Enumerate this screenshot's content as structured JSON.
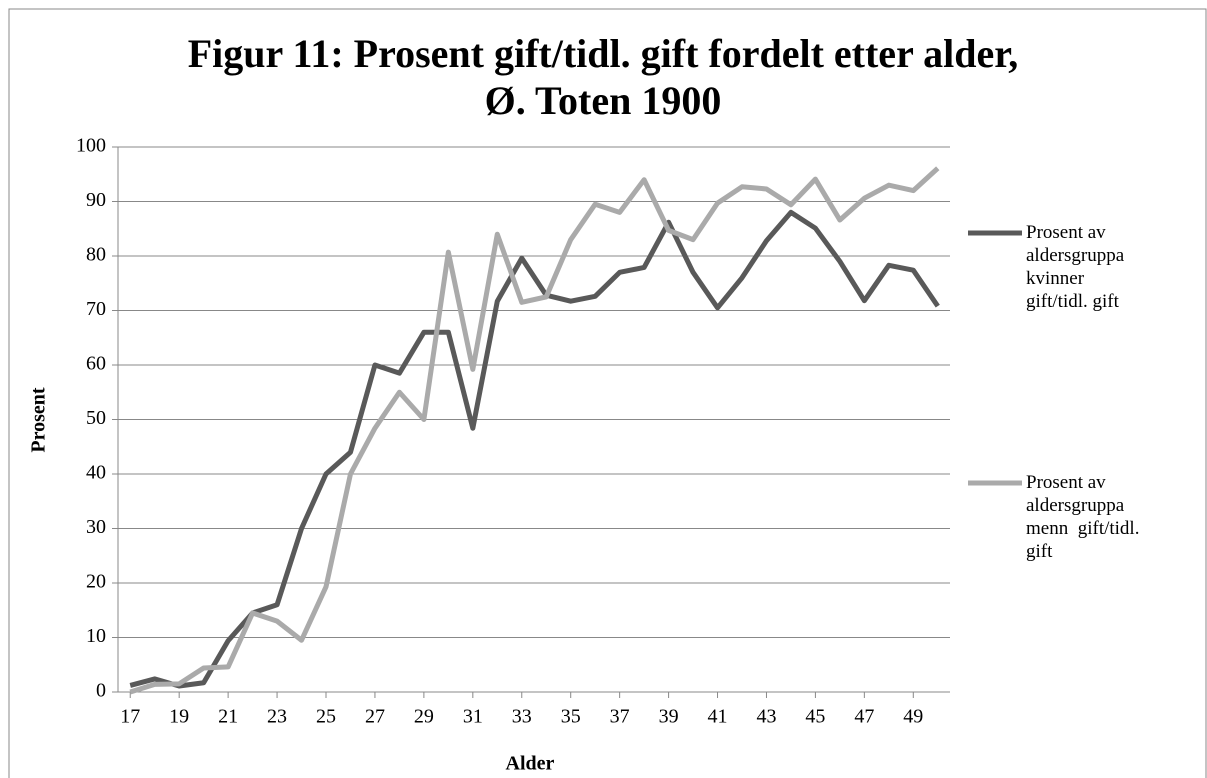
{
  "chart_data": {
    "type": "line",
    "title": [
      "Figur 11: Prosent gift/tidl. gift fordelt etter alder,",
      "Ø. Toten 1900"
    ],
    "x_label": "Alder",
    "y_label": "Prosent",
    "x": [
      17,
      18,
      19,
      20,
      21,
      22,
      23,
      24,
      25,
      26,
      27,
      28,
      29,
      30,
      31,
      32,
      33,
      34,
      35,
      36,
      37,
      38,
      39,
      40,
      41,
      42,
      43,
      44,
      45,
      46,
      47,
      48,
      49,
      50
    ],
    "xlim": [
      16.5,
      50.5
    ],
    "xticks": [
      17,
      19,
      21,
      23,
      25,
      27,
      29,
      31,
      33,
      35,
      37,
      39,
      41,
      43,
      45,
      47,
      49
    ],
    "ylim": [
      0,
      100
    ],
    "yticks": [
      0,
      10,
      20,
      30,
      40,
      50,
      60,
      70,
      80,
      90,
      100
    ],
    "grid": true,
    "legend": "right",
    "series": [
      {
        "name": "Prosent av aldersgruppa kvinner gift/tidl. gift",
        "color": "#595959",
        "values": [
          1.2,
          2.4,
          1.1,
          1.7,
          9.4,
          14.5,
          16,
          30,
          40,
          44,
          60,
          58.5,
          66,
          66,
          48.4,
          71.7,
          79.6,
          72.8,
          71.7,
          72.6,
          77,
          77.9,
          86.2,
          77,
          70.5,
          76,
          82.8,
          88,
          85.1,
          79,
          71.8,
          78.3,
          77.4,
          70.8
        ]
      },
      {
        "name": "Prosent av aldersgruppa menn  gift/tidl. gift",
        "color": "#aaaaaa",
        "values": [
          0,
          1.4,
          1.5,
          4.4,
          4.6,
          14.5,
          13,
          9.5,
          19.3,
          40,
          48.4,
          55,
          50,
          80.7,
          59.2,
          84,
          71.5,
          72.5,
          83,
          89.5,
          88,
          94,
          84.7,
          83,
          89.7,
          92.7,
          92.3,
          89.4,
          94.1,
          86.6,
          90.6,
          93,
          92,
          96.1
        ]
      }
    ]
  }
}
